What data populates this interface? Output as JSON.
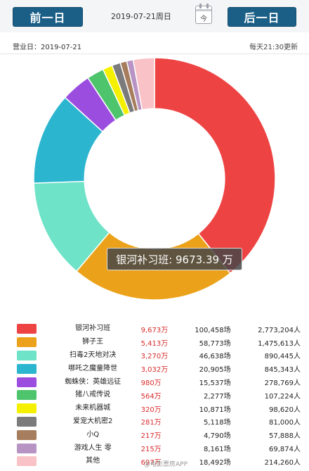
{
  "header": {
    "prev_label": "前一日",
    "next_label": "后一日",
    "date_label": "2019-07-21周日",
    "calendar_label": "今"
  },
  "subheader": {
    "business_day": "营业日：2019-07-21",
    "update_note": "每天21:30更新"
  },
  "tooltip": "银河补习班: 9673.39 万",
  "watermark": "@电影票房APP",
  "chart_data": {
    "type": "pie",
    "title": "",
    "categories": [
      "银河补习班",
      "狮子王",
      "扫毒2天地对决",
      "哪吒之魔童降世",
      "蜘蛛侠：英雄远征",
      "猪八戒传说",
      "未来机器城",
      "爱宠大机密2",
      "小Q",
      "游戏人生 零",
      "其他"
    ],
    "values": [
      9673,
      5413,
      3270,
      3032,
      980,
      564,
      320,
      281,
      217,
      215,
      697
    ],
    "colors": [
      "#ee4343",
      "#eba21a",
      "#6ee3c7",
      "#2bb5cf",
      "#9b4de0",
      "#4ec46d",
      "#f4f000",
      "#7b7b7b",
      "#a67d5d",
      "#b894c4",
      "#f8c2c6"
    ],
    "inner_radius_ratio": 0.58
  },
  "legend_rows": [
    {
      "name": "银河补习班",
      "box": "9,673万",
      "shows": "100,458场",
      "aud": "2,773,204人"
    },
    {
      "name": "狮子王",
      "box": "5,413万",
      "shows": "58,773场",
      "aud": "1,475,613人"
    },
    {
      "name": "扫毒2天地对决",
      "box": "3,270万",
      "shows": "46,638场",
      "aud": "890,445人"
    },
    {
      "name": "哪吒之魔童降世",
      "box": "3,032万",
      "shows": "20,905场",
      "aud": "845,343人"
    },
    {
      "name": "蜘蛛侠：英雄远征",
      "box": "980万",
      "shows": "15,537场",
      "aud": "278,769人"
    },
    {
      "name": "猪八戒传说",
      "box": "564万",
      "shows": "2,277场",
      "aud": "107,224人"
    },
    {
      "name": "未来机器城",
      "box": "320万",
      "shows": "10,871场",
      "aud": "98,620人"
    },
    {
      "name": "爱宠大机密2",
      "box": "281万",
      "shows": "5,118场",
      "aud": "81,000人"
    },
    {
      "name": "小Q",
      "box": "217万",
      "shows": "4,790场",
      "aud": "57,888人"
    },
    {
      "name": "游戏人生 零",
      "box": "215万",
      "shows": "8,161场",
      "aud": "69,874人"
    },
    {
      "name": "其他",
      "box": "697万",
      "shows": "18,492场",
      "aud": "214,260人"
    }
  ]
}
